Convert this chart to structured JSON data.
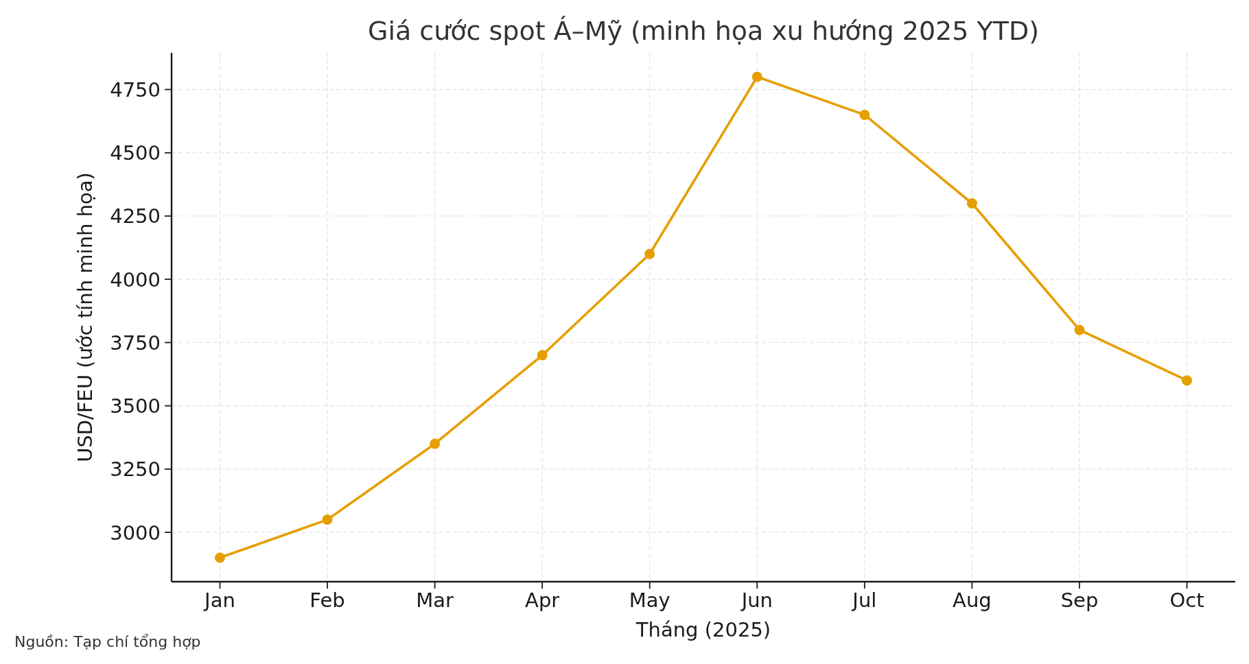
{
  "chart_data": {
    "type": "line",
    "title": "Giá cước spot Á–Mỹ (minh họa xu hướng 2025 YTD)",
    "xlabel": "Tháng (2025)",
    "ylabel": "USD/FEU (ước tính minh họa)",
    "categories": [
      "Jan",
      "Feb",
      "Mar",
      "Apr",
      "May",
      "Jun",
      "Jul",
      "Aug",
      "Sep",
      "Oct"
    ],
    "series": [
      {
        "color": "#e69f00",
        "values": [
          2900,
          3050,
          3350,
          3700,
          4100,
          4800,
          4650,
          4300,
          3800,
          3600
        ]
      }
    ],
    "ylim": [
      2805,
      4895
    ],
    "yticks": [
      3000,
      3250,
      3500,
      3750,
      4000,
      4250,
      4500,
      4750
    ],
    "grid": true,
    "marker": "circle",
    "line_style": "solid",
    "annotations": [
      "Nguồn: Tạp chí tổng hợp"
    ]
  }
}
